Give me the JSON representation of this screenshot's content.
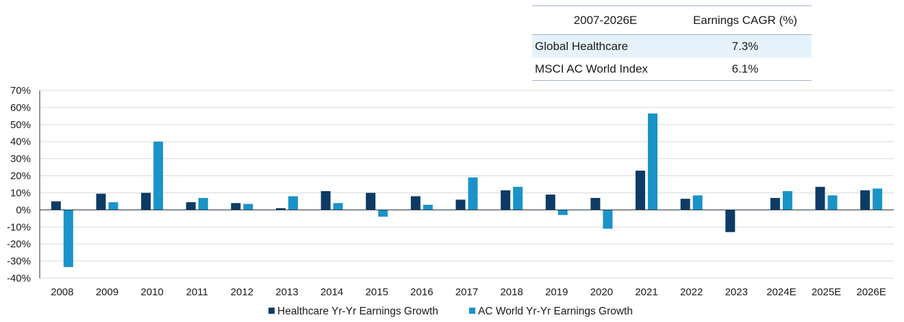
{
  "table": {
    "headers": [
      "2007-2026E",
      "Earnings CAGR (%)"
    ],
    "rows": [
      {
        "name": "Global Healthcare",
        "value": "7.3%"
      },
      {
        "name": "MSCI AC World Index",
        "value": "6.1%"
      }
    ]
  },
  "colors": {
    "healthcare": "#0d3b66",
    "acworld": "#1a93c8",
    "grid": "#d9d9d9"
  },
  "chart_data": {
    "type": "bar",
    "title": "",
    "xlabel": "",
    "ylabel": "",
    "ylim": [
      -40,
      70
    ],
    "yticks": [
      70,
      60,
      50,
      40,
      30,
      20,
      10,
      0,
      -10,
      -20,
      -30,
      -40
    ],
    "ytick_labels": [
      "70%",
      "60%",
      "50%",
      "40%",
      "30%",
      "20%",
      "10%",
      "0%",
      "-10%",
      "-20%",
      "-30%",
      "-40%"
    ],
    "grid": true,
    "legend_position": "bottom",
    "categories": [
      "2008",
      "2009",
      "2010",
      "2011",
      "2012",
      "2013",
      "2014",
      "2015",
      "2016",
      "2017",
      "2018",
      "2019",
      "2020",
      "2021",
      "2022",
      "2023",
      "2024E",
      "2025E",
      "2026E"
    ],
    "series": [
      {
        "name": "Healthcare Yr-Yr Earnings Growth",
        "values": [
          5,
          9.5,
          10,
          4.5,
          4,
          1,
          11,
          10,
          8,
          6,
          11.5,
          9,
          7,
          23,
          6.5,
          -13,
          7,
          13.5,
          11.5
        ]
      },
      {
        "name": "AC World Yr-Yr Earnings Growth",
        "values": [
          -33.5,
          4.5,
          40,
          7,
          3.5,
          8,
          4,
          -4,
          3,
          19,
          13.5,
          -3,
          -11,
          56.5,
          8.5,
          0,
          11,
          8.5,
          12.5
        ]
      }
    ]
  }
}
